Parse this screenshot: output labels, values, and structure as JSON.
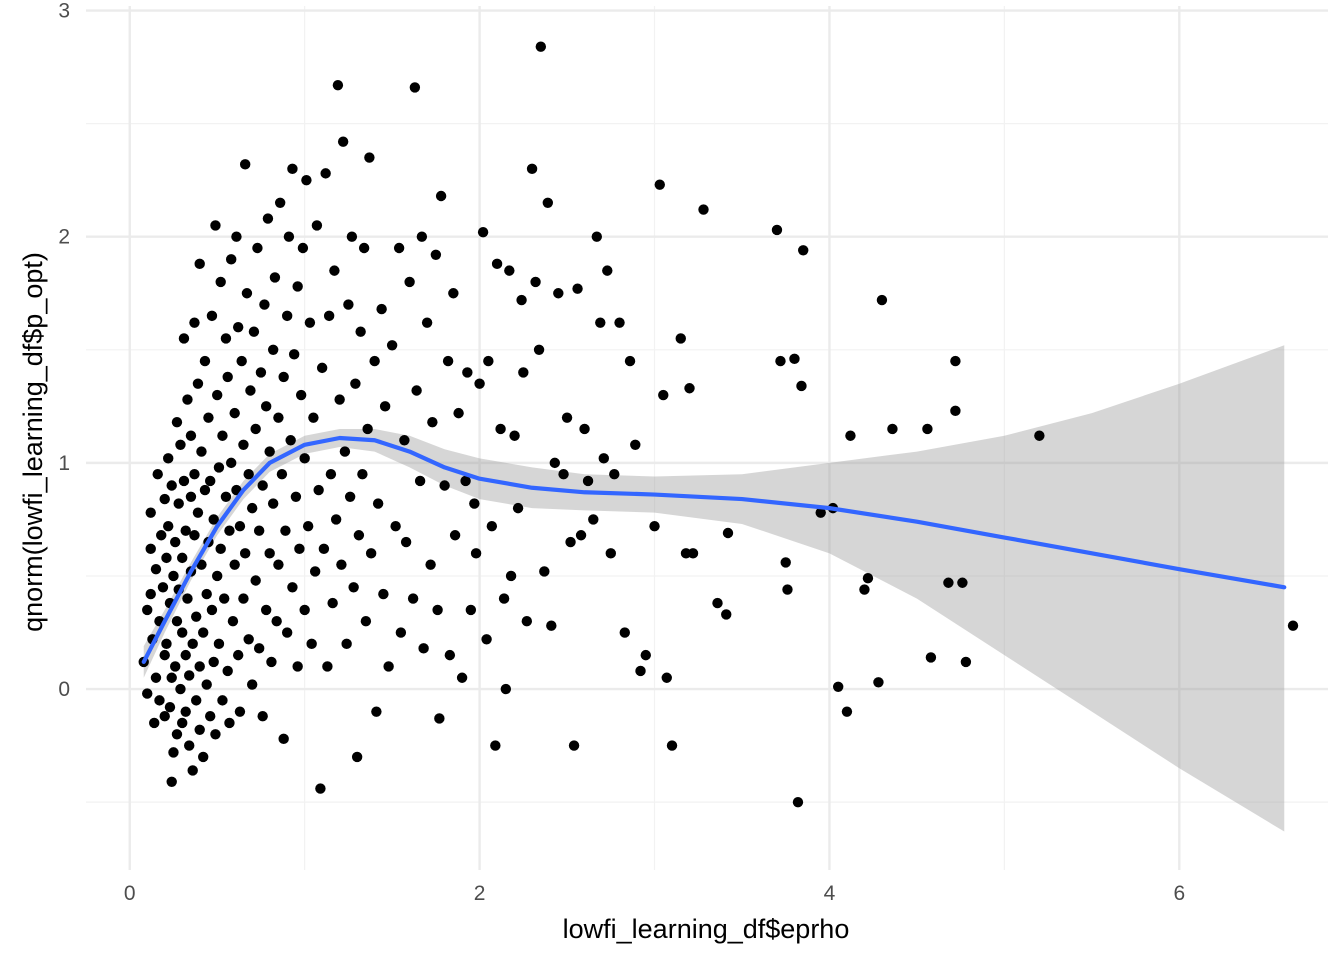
{
  "chart_data": {
    "type": "scatter",
    "title": "",
    "xlabel": "lowfi_learning_df$eprho",
    "ylabel": "qnorm(lowfi_learning_df$p_opt)",
    "xlim": [
      -0.25,
      6.85
    ],
    "ylim": [
      -0.8,
      3.02
    ],
    "x_ticks": [
      0,
      2,
      4,
      6
    ],
    "y_ticks": [
      0,
      1,
      2,
      3
    ],
    "x_tick_labels": [
      "0",
      "2",
      "4",
      "6"
    ],
    "y_tick_labels": [
      "0",
      "1",
      "2",
      "3"
    ],
    "grid": true,
    "theme": "minimal",
    "point_color": "#000000",
    "smooth_color": "#3366FF",
    "band_color": "#999999",
    "points": [
      [
        0.08,
        0.12
      ],
      [
        0.1,
        -0.02
      ],
      [
        0.1,
        0.35
      ],
      [
        0.12,
        0.78
      ],
      [
        0.12,
        0.62
      ],
      [
        0.12,
        0.42
      ],
      [
        0.13,
        0.22
      ],
      [
        0.14,
        -0.15
      ],
      [
        0.15,
        0.05
      ],
      [
        0.15,
        0.53
      ],
      [
        0.16,
        0.95
      ],
      [
        0.17,
        0.3
      ],
      [
        0.17,
        -0.05
      ],
      [
        0.18,
        0.68
      ],
      [
        0.19,
        0.45
      ],
      [
        0.2,
        0.15
      ],
      [
        0.2,
        0.84
      ],
      [
        0.2,
        -0.12
      ],
      [
        0.21,
        0.58
      ],
      [
        0.21,
        0.2
      ],
      [
        0.22,
        1.02
      ],
      [
        0.22,
        0.72
      ],
      [
        0.23,
        -0.08
      ],
      [
        0.23,
        0.38
      ],
      [
        0.24,
        0.05
      ],
      [
        0.24,
        0.9
      ],
      [
        0.24,
        -0.41
      ],
      [
        0.25,
        0.5
      ],
      [
        0.25,
        -0.28
      ],
      [
        0.26,
        0.1
      ],
      [
        0.26,
        0.65
      ],
      [
        0.27,
        1.18
      ],
      [
        0.27,
        0.3
      ],
      [
        0.27,
        -0.2
      ],
      [
        0.28,
        0.82
      ],
      [
        0.28,
        0.44
      ],
      [
        0.29,
        0.0
      ],
      [
        0.29,
        1.08
      ],
      [
        0.3,
        -0.15
      ],
      [
        0.3,
        0.58
      ],
      [
        0.3,
        0.25
      ],
      [
        0.31,
        0.92
      ],
      [
        0.31,
        1.55
      ],
      [
        0.32,
        0.15
      ],
      [
        0.32,
        -0.1
      ],
      [
        0.32,
        0.7
      ],
      [
        0.33,
        1.28
      ],
      [
        0.33,
        0.4
      ],
      [
        0.34,
        -0.25
      ],
      [
        0.34,
        0.06
      ],
      [
        0.35,
        0.85
      ],
      [
        0.35,
        1.12
      ],
      [
        0.35,
        0.52
      ],
      [
        0.36,
        -0.36
      ],
      [
        0.36,
        0.2
      ],
      [
        0.37,
        1.62
      ],
      [
        0.37,
        0.68
      ],
      [
        0.37,
        0.95
      ],
      [
        0.38,
        -0.05
      ],
      [
        0.38,
        0.32
      ],
      [
        0.39,
        1.35
      ],
      [
        0.39,
        0.78
      ],
      [
        0.4,
        0.1
      ],
      [
        0.4,
        1.88
      ],
      [
        0.4,
        -0.18
      ],
      [
        0.41,
        0.55
      ],
      [
        0.41,
        1.05
      ],
      [
        0.42,
        0.25
      ],
      [
        0.42,
        -0.3
      ],
      [
        0.43,
        0.88
      ],
      [
        0.43,
        1.45
      ],
      [
        0.44,
        0.42
      ],
      [
        0.44,
        0.02
      ],
      [
        0.45,
        1.2
      ],
      [
        0.45,
        0.65
      ],
      [
        0.46,
        -0.12
      ],
      [
        0.46,
        0.92
      ],
      [
        0.47,
        0.35
      ],
      [
        0.47,
        1.65
      ],
      [
        0.48,
        0.12
      ],
      [
        0.48,
        0.75
      ],
      [
        0.49,
        2.05
      ],
      [
        0.49,
        -0.2
      ],
      [
        0.5,
        0.5
      ],
      [
        0.5,
        1.3
      ],
      [
        0.51,
        0.98
      ],
      [
        0.51,
        0.2
      ],
      [
        0.52,
        1.8
      ],
      [
        0.52,
        0.62
      ],
      [
        0.53,
        -0.05
      ],
      [
        0.53,
        1.12
      ],
      [
        0.54,
        0.4
      ],
      [
        0.55,
        0.85
      ],
      [
        0.55,
        1.55
      ],
      [
        0.56,
        0.08
      ],
      [
        0.56,
        1.38
      ],
      [
        0.57,
        0.7
      ],
      [
        0.57,
        -0.15
      ],
      [
        0.58,
        1.0
      ],
      [
        0.58,
        1.9
      ],
      [
        0.59,
        0.3
      ],
      [
        0.6,
        0.55
      ],
      [
        0.6,
        1.22
      ],
      [
        0.61,
        2.0
      ],
      [
        0.61,
        0.88
      ],
      [
        0.62,
        0.15
      ],
      [
        0.62,
        1.6
      ],
      [
        0.63,
        -0.1
      ],
      [
        0.63,
        0.72
      ],
      [
        0.64,
        1.45
      ],
      [
        0.65,
        0.4
      ],
      [
        0.65,
        1.08
      ],
      [
        0.66,
        2.32
      ],
      [
        0.66,
        0.6
      ],
      [
        0.67,
        1.75
      ],
      [
        0.68,
        0.22
      ],
      [
        0.68,
        0.95
      ],
      [
        0.69,
        1.32
      ],
      [
        0.7,
        0.02
      ],
      [
        0.7,
        0.8
      ],
      [
        0.71,
        1.58
      ],
      [
        0.72,
        0.48
      ],
      [
        0.72,
        1.15
      ],
      [
        0.73,
        1.95
      ],
      [
        0.74,
        0.18
      ],
      [
        0.74,
        0.7
      ],
      [
        0.75,
        1.4
      ],
      [
        0.76,
        -0.12
      ],
      [
        0.76,
        0.9
      ],
      [
        0.77,
        1.7
      ],
      [
        0.78,
        0.35
      ],
      [
        0.78,
        1.25
      ],
      [
        0.79,
        2.08
      ],
      [
        0.8,
        0.6
      ],
      [
        0.8,
        1.05
      ],
      [
        0.81,
        0.12
      ],
      [
        0.82,
        1.5
      ],
      [
        0.82,
        0.82
      ],
      [
        0.83,
        1.82
      ],
      [
        0.84,
        0.3
      ],
      [
        0.85,
        1.2
      ],
      [
        0.85,
        0.55
      ],
      [
        0.86,
        2.15
      ],
      [
        0.87,
        0.95
      ],
      [
        0.88,
        -0.22
      ],
      [
        0.88,
        1.38
      ],
      [
        0.89,
        0.7
      ],
      [
        0.9,
        1.65
      ],
      [
        0.9,
        0.25
      ],
      [
        0.91,
        2.0
      ],
      [
        0.92,
        1.1
      ],
      [
        0.93,
        0.45
      ],
      [
        0.93,
        2.3
      ],
      [
        0.94,
        1.48
      ],
      [
        0.95,
        0.85
      ],
      [
        0.96,
        0.1
      ],
      [
        0.96,
        1.78
      ],
      [
        0.97,
        0.62
      ],
      [
        0.98,
        1.3
      ],
      [
        0.99,
        1.95
      ],
      [
        1.0,
        0.35
      ],
      [
        1.0,
        1.02
      ],
      [
        1.01,
        2.25
      ],
      [
        1.02,
        0.72
      ],
      [
        1.03,
        1.62
      ],
      [
        1.04,
        0.2
      ],
      [
        1.05,
        1.2
      ],
      [
        1.06,
        0.52
      ],
      [
        1.07,
        2.05
      ],
      [
        1.08,
        0.88
      ],
      [
        1.09,
        -0.44
      ],
      [
        1.1,
        1.42
      ],
      [
        1.11,
        0.62
      ],
      [
        1.12,
        2.28
      ],
      [
        1.13,
        0.1
      ],
      [
        1.14,
        1.65
      ],
      [
        1.15,
        0.95
      ],
      [
        1.16,
        0.38
      ],
      [
        1.17,
        1.85
      ],
      [
        1.18,
        0.75
      ],
      [
        1.19,
        2.67
      ],
      [
        1.2,
        1.28
      ],
      [
        1.21,
        0.55
      ],
      [
        1.22,
        2.42
      ],
      [
        1.23,
        1.05
      ],
      [
        1.24,
        0.2
      ],
      [
        1.25,
        1.7
      ],
      [
        1.26,
        0.85
      ],
      [
        1.27,
        2.0
      ],
      [
        1.28,
        0.45
      ],
      [
        1.29,
        1.35
      ],
      [
        1.3,
        -0.3
      ],
      [
        1.31,
        0.68
      ],
      [
        1.32,
        1.58
      ],
      [
        1.33,
        0.95
      ],
      [
        1.34,
        1.95
      ],
      [
        1.35,
        0.3
      ],
      [
        1.36,
        1.15
      ],
      [
        1.37,
        2.35
      ],
      [
        1.38,
        0.6
      ],
      [
        1.4,
        1.45
      ],
      [
        1.41,
        -0.1
      ],
      [
        1.42,
        0.82
      ],
      [
        1.44,
        1.68
      ],
      [
        1.45,
        0.42
      ],
      [
        1.46,
        1.25
      ],
      [
        1.48,
        0.1
      ],
      [
        1.5,
        1.52
      ],
      [
        1.52,
        0.72
      ],
      [
        1.54,
        1.95
      ],
      [
        1.55,
        0.25
      ],
      [
        1.57,
        1.1
      ],
      [
        1.58,
        0.65
      ],
      [
        1.6,
        1.8
      ],
      [
        1.62,
        0.4
      ],
      [
        1.63,
        2.66
      ],
      [
        1.64,
        1.32
      ],
      [
        1.66,
        0.92
      ],
      [
        1.67,
        2.0
      ],
      [
        1.68,
        0.18
      ],
      [
        1.7,
        1.62
      ],
      [
        1.72,
        0.55
      ],
      [
        1.73,
        1.18
      ],
      [
        1.75,
        1.92
      ],
      [
        1.76,
        0.35
      ],
      [
        1.77,
        -0.13
      ],
      [
        1.78,
        2.18
      ],
      [
        1.8,
        0.9
      ],
      [
        1.82,
        1.45
      ],
      [
        1.83,
        0.15
      ],
      [
        1.85,
        1.75
      ],
      [
        1.86,
        0.68
      ],
      [
        1.88,
        1.22
      ],
      [
        1.9,
        0.05
      ],
      [
        1.92,
        0.92
      ],
      [
        1.93,
        1.4
      ],
      [
        1.95,
        0.35
      ],
      [
        1.97,
        0.82
      ],
      [
        1.98,
        0.6
      ],
      [
        2.0,
        1.35
      ],
      [
        2.02,
        2.02
      ],
      [
        2.04,
        0.22
      ],
      [
        2.05,
        1.45
      ],
      [
        2.07,
        0.72
      ],
      [
        2.09,
        -0.25
      ],
      [
        2.1,
        1.88
      ],
      [
        2.12,
        1.15
      ],
      [
        2.14,
        0.4
      ],
      [
        2.15,
        0.0
      ],
      [
        2.17,
        1.85
      ],
      [
        2.18,
        0.5
      ],
      [
        2.2,
        1.12
      ],
      [
        2.22,
        0.8
      ],
      [
        2.24,
        1.72
      ],
      [
        2.25,
        1.4
      ],
      [
        2.27,
        0.3
      ],
      [
        2.3,
        2.3
      ],
      [
        2.32,
        1.8
      ],
      [
        2.34,
        1.5
      ],
      [
        2.35,
        2.84
      ],
      [
        2.37,
        0.52
      ],
      [
        2.39,
        2.15
      ],
      [
        2.41,
        0.28
      ],
      [
        2.43,
        1.0
      ],
      [
        2.45,
        1.75
      ],
      [
        2.48,
        0.95
      ],
      [
        2.5,
        1.2
      ],
      [
        2.52,
        0.65
      ],
      [
        2.54,
        -0.25
      ],
      [
        2.56,
        1.77
      ],
      [
        2.58,
        0.68
      ],
      [
        2.6,
        1.15
      ],
      [
        2.62,
        0.92
      ],
      [
        2.65,
        0.75
      ],
      [
        2.67,
        2.0
      ],
      [
        2.69,
        1.62
      ],
      [
        2.71,
        1.02
      ],
      [
        2.73,
        1.85
      ],
      [
        2.75,
        0.6
      ],
      [
        2.77,
        0.95
      ],
      [
        2.8,
        1.62
      ],
      [
        2.83,
        0.25
      ],
      [
        2.86,
        1.45
      ],
      [
        2.89,
        1.08
      ],
      [
        2.92,
        0.08
      ],
      [
        2.95,
        0.15
      ],
      [
        3.0,
        0.72
      ],
      [
        3.03,
        2.23
      ],
      [
        3.05,
        1.3
      ],
      [
        3.07,
        0.05
      ],
      [
        3.1,
        -0.25
      ],
      [
        3.15,
        1.55
      ],
      [
        3.18,
        0.6
      ],
      [
        3.2,
        1.33
      ],
      [
        3.22,
        0.6
      ],
      [
        3.28,
        2.12
      ],
      [
        3.36,
        0.38
      ],
      [
        3.41,
        0.33
      ],
      [
        3.42,
        0.69
      ],
      [
        3.7,
        2.03
      ],
      [
        3.72,
        1.45
      ],
      [
        3.75,
        0.56
      ],
      [
        3.76,
        0.44
      ],
      [
        3.8,
        1.46
      ],
      [
        3.82,
        -0.5
      ],
      [
        3.84,
        1.34
      ],
      [
        3.85,
        1.94
      ],
      [
        3.95,
        0.78
      ],
      [
        4.02,
        0.8
      ],
      [
        4.05,
        0.01
      ],
      [
        4.1,
        -0.1
      ],
      [
        4.12,
        1.12
      ],
      [
        4.2,
        0.44
      ],
      [
        4.22,
        0.49
      ],
      [
        4.28,
        0.03
      ],
      [
        4.3,
        1.72
      ],
      [
        4.36,
        1.15
      ],
      [
        4.56,
        1.15
      ],
      [
        4.58,
        0.14
      ],
      [
        4.68,
        0.47
      ],
      [
        4.72,
        1.45
      ],
      [
        4.72,
        1.23
      ],
      [
        4.76,
        0.47
      ],
      [
        4.78,
        0.12
      ],
      [
        5.2,
        1.12
      ],
      [
        6.65,
        0.28
      ]
    ],
    "smooth": {
      "x": [
        0.08,
        0.2,
        0.35,
        0.5,
        0.65,
        0.8,
        1.0,
        1.2,
        1.4,
        1.6,
        1.8,
        2.0,
        2.3,
        2.6,
        3.0,
        3.5,
        4.0,
        4.5,
        5.0,
        5.5,
        6.0,
        6.6
      ],
      "y": [
        0.12,
        0.3,
        0.52,
        0.72,
        0.88,
        1.0,
        1.08,
        1.11,
        1.1,
        1.05,
        0.98,
        0.93,
        0.89,
        0.87,
        0.86,
        0.84,
        0.8,
        0.74,
        0.67,
        0.6,
        0.53,
        0.45
      ],
      "lower": [
        0.05,
        0.25,
        0.48,
        0.68,
        0.84,
        0.96,
        1.04,
        1.07,
        1.05,
        0.98,
        0.9,
        0.84,
        0.8,
        0.79,
        0.78,
        0.73,
        0.6,
        0.4,
        0.15,
        -0.1,
        -0.35,
        -0.63
      ],
      "upper": [
        0.19,
        0.35,
        0.56,
        0.76,
        0.92,
        1.04,
        1.12,
        1.15,
        1.15,
        1.12,
        1.06,
        1.02,
        0.98,
        0.95,
        0.94,
        0.95,
        1.0,
        1.05,
        1.12,
        1.22,
        1.35,
        1.52
      ]
    }
  }
}
